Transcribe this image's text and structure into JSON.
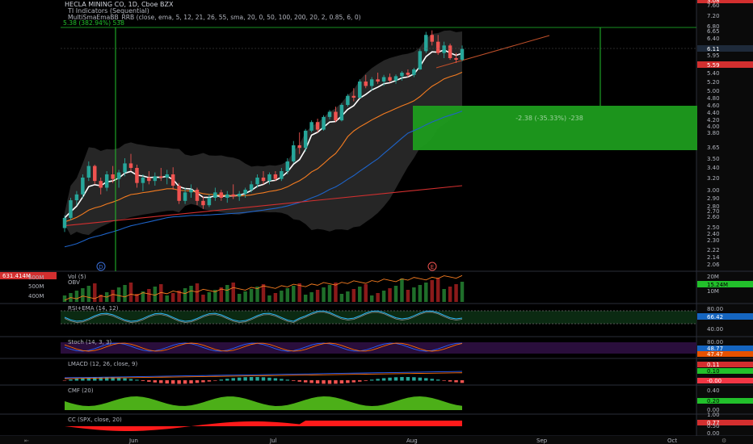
{
  "header": {
    "title": "HECLA MINING CO, 1D, Cboe BZX",
    "indicator1": "TI Indicators (Sequential)",
    "indicator2": "MultiSmaEmaBB_RRB (close, ema, 5, 12, 21, 26, 55, sma, 20, 0, 50, 100, 200, 20, 2, 0.85, 6, 0)",
    "measure_label": "5.38 (382.94%) 538"
  },
  "colors": {
    "up": "#26a69a",
    "down": "#ef5350",
    "ema_fast": "#ffffff",
    "ema_mid": "#f57c20",
    "ema_slow": "#1e63c8",
    "ema_long": "#d32f2f",
    "bb_fill": "#2a2a2a",
    "zone": "#1e9c1e",
    "green": "#22c02b",
    "red": "#f23645"
  },
  "price_axis": {
    "ticks": [
      "7.60",
      "7.20",
      "6.80",
      "6.65",
      "6.40",
      "6.11",
      "5.95",
      "5.59",
      "5.40",
      "5.20",
      "5.00",
      "4.80",
      "4.60",
      "4.40",
      "4.20",
      "4.00",
      "3.80",
      "3.65",
      "3.50",
      "3.40",
      "3.20",
      "3.00",
      "2.90",
      "2.80",
      "2.70",
      "2.60",
      "2.50",
      "2.40",
      "2.30",
      "2.22",
      "2.14",
      "2.06"
    ],
    "badges": [
      {
        "label": "6.11",
        "kind": "dark"
      },
      {
        "label": "5.59",
        "kind": "red"
      },
      {
        "label": "4.23",
        "kind": "blue"
      },
      {
        "label": "3.08",
        "kind": "red"
      }
    ]
  },
  "zone_label": "-2.38 (-35.33%) -238",
  "marker_labels": {
    "left": "D",
    "right": "E"
  },
  "time_axis": {
    "labels": [
      "Jun",
      "Jul",
      "Aug",
      "Sep",
      "Oct"
    ]
  },
  "panes": {
    "vol": {
      "title": "Vol (5)",
      "sub": "OBV",
      "left_labels": [
        "631.414M",
        "600M",
        "500M",
        "400M"
      ],
      "right_labels": [
        "20M",
        "15.24M",
        "10M"
      ]
    },
    "rsi": {
      "title": "RSI+EMA (14, 12)",
      "right_labels": [
        "80.00",
        "66.42",
        "40.00"
      ]
    },
    "stoch": {
      "title": "Stoch (14, 3, 3)",
      "right_labels": [
        "80.00",
        "48.77",
        "47.47"
      ]
    },
    "lmacd": {
      "title": "LMACD (12, 26, close, 9)",
      "right_labels": [
        "0.11",
        "0.10",
        "-0.00"
      ]
    },
    "cmf": {
      "title": "CMF (20)",
      "right_labels": [
        "0.40",
        "0.20",
        "0.00"
      ]
    },
    "cc": {
      "title": "CC (SPX, close, 20)",
      "right_labels": [
        "1.00",
        "0.77",
        "0.50",
        "0.00"
      ]
    }
  },
  "chart_data": {
    "type": "candlestick",
    "title": "HECLA MINING CO, 1D, Cboe BZX",
    "series": [
      {
        "name": "price",
        "values": [
          {
            "o": 2.45,
            "h": 2.62,
            "l": 2.4,
            "c": 2.58
          },
          {
            "o": 2.58,
            "h": 2.9,
            "l": 2.55,
            "c": 2.86
          },
          {
            "o": 2.86,
            "h": 3.0,
            "l": 2.78,
            "c": 2.95
          },
          {
            "o": 2.95,
            "h": 3.25,
            "l": 2.9,
            "c": 3.2
          },
          {
            "o": 3.2,
            "h": 3.45,
            "l": 3.15,
            "c": 3.38
          },
          {
            "o": 3.38,
            "h": 3.4,
            "l": 3.1,
            "c": 3.15
          },
          {
            "o": 3.15,
            "h": 3.2,
            "l": 2.95,
            "c": 3.05
          },
          {
            "o": 3.05,
            "h": 3.3,
            "l": 3.0,
            "c": 3.25
          },
          {
            "o": 3.25,
            "h": 3.38,
            "l": 3.12,
            "c": 3.18
          },
          {
            "o": 3.18,
            "h": 3.32,
            "l": 3.05,
            "c": 3.28
          },
          {
            "o": 3.28,
            "h": 3.5,
            "l": 3.22,
            "c": 3.42
          },
          {
            "o": 3.42,
            "h": 3.55,
            "l": 3.3,
            "c": 3.35
          },
          {
            "o": 3.35,
            "h": 3.4,
            "l": 3.05,
            "c": 3.12
          },
          {
            "o": 3.12,
            "h": 3.25,
            "l": 3.0,
            "c": 3.2
          },
          {
            "o": 3.2,
            "h": 3.3,
            "l": 3.1,
            "c": 3.15
          },
          {
            "o": 3.15,
            "h": 3.28,
            "l": 3.08,
            "c": 3.22
          },
          {
            "o": 3.22,
            "h": 3.35,
            "l": 3.15,
            "c": 3.2
          },
          {
            "o": 3.2,
            "h": 3.32,
            "l": 3.1,
            "c": 3.25
          },
          {
            "o": 3.25,
            "h": 3.36,
            "l": 3.02,
            "c": 3.08
          },
          {
            "o": 3.08,
            "h": 3.12,
            "l": 2.8,
            "c": 2.85
          },
          {
            "o": 2.85,
            "h": 3.05,
            "l": 2.8,
            "c": 2.98
          },
          {
            "o": 2.98,
            "h": 3.1,
            "l": 2.9,
            "c": 3.02
          },
          {
            "o": 3.02,
            "h": 3.05,
            "l": 2.78,
            "c": 2.85
          },
          {
            "o": 2.85,
            "h": 2.92,
            "l": 2.72,
            "c": 2.78
          },
          {
            "o": 2.78,
            "h": 2.95,
            "l": 2.75,
            "c": 2.9
          },
          {
            "o": 2.9,
            "h": 3.05,
            "l": 2.85,
            "c": 2.98
          },
          {
            "o": 2.98,
            "h": 3.02,
            "l": 2.85,
            "c": 2.9
          },
          {
            "o": 2.9,
            "h": 3.0,
            "l": 2.82,
            "c": 2.95
          },
          {
            "o": 2.95,
            "h": 3.1,
            "l": 2.88,
            "c": 2.92
          },
          {
            "o": 2.92,
            "h": 3.0,
            "l": 2.85,
            "c": 2.96
          },
          {
            "o": 2.96,
            "h": 3.05,
            "l": 2.9,
            "c": 3.02
          },
          {
            "o": 3.02,
            "h": 3.15,
            "l": 2.98,
            "c": 3.1
          },
          {
            "o": 3.1,
            "h": 3.25,
            "l": 3.05,
            "c": 3.2
          },
          {
            "o": 3.2,
            "h": 3.3,
            "l": 3.1,
            "c": 3.15
          },
          {
            "o": 3.15,
            "h": 3.28,
            "l": 3.1,
            "c": 3.25
          },
          {
            "o": 3.25,
            "h": 3.3,
            "l": 3.15,
            "c": 3.18
          },
          {
            "o": 3.18,
            "h": 3.35,
            "l": 3.15,
            "c": 3.3
          },
          {
            "o": 3.3,
            "h": 3.5,
            "l": 3.25,
            "c": 3.45
          },
          {
            "o": 3.45,
            "h": 3.7,
            "l": 3.42,
            "c": 3.65
          },
          {
            "o": 3.65,
            "h": 3.8,
            "l": 3.55,
            "c": 3.62
          },
          {
            "o": 3.62,
            "h": 3.9,
            "l": 3.58,
            "c": 3.85
          },
          {
            "o": 3.85,
            "h": 4.15,
            "l": 3.8,
            "c": 4.1
          },
          {
            "o": 4.1,
            "h": 4.2,
            "l": 3.8,
            "c": 3.88
          },
          {
            "o": 3.88,
            "h": 4.3,
            "l": 3.85,
            "c": 4.25
          },
          {
            "o": 4.25,
            "h": 4.45,
            "l": 4.18,
            "c": 4.4
          },
          {
            "o": 4.4,
            "h": 4.55,
            "l": 4.1,
            "c": 4.15
          },
          {
            "o": 4.15,
            "h": 4.65,
            "l": 4.12,
            "c": 4.6
          },
          {
            "o": 4.6,
            "h": 4.9,
            "l": 4.55,
            "c": 4.85
          },
          {
            "o": 4.85,
            "h": 5.05,
            "l": 4.7,
            "c": 4.8
          },
          {
            "o": 4.8,
            "h": 5.25,
            "l": 4.78,
            "c": 5.2
          },
          {
            "o": 5.2,
            "h": 5.35,
            "l": 5.05,
            "c": 5.1
          },
          {
            "o": 5.1,
            "h": 5.3,
            "l": 5.0,
            "c": 5.25
          },
          {
            "o": 5.25,
            "h": 5.4,
            "l": 5.15,
            "c": 5.2
          },
          {
            "o": 5.2,
            "h": 5.35,
            "l": 5.1,
            "c": 5.3
          },
          {
            "o": 5.3,
            "h": 5.38,
            "l": 5.18,
            "c": 5.22
          },
          {
            "o": 5.22,
            "h": 5.36,
            "l": 5.15,
            "c": 5.32
          },
          {
            "o": 5.32,
            "h": 5.45,
            "l": 5.22,
            "c": 5.4
          },
          {
            "o": 5.4,
            "h": 5.5,
            "l": 5.3,
            "c": 5.35
          },
          {
            "o": 5.35,
            "h": 5.55,
            "l": 5.3,
            "c": 5.5
          },
          {
            "o": 5.5,
            "h": 6.1,
            "l": 5.48,
            "c": 6.05
          },
          {
            "o": 6.05,
            "h": 6.6,
            "l": 6.0,
            "c": 6.5
          },
          {
            "o": 6.5,
            "h": 6.65,
            "l": 6.2,
            "c": 6.3
          },
          {
            "o": 6.3,
            "h": 6.5,
            "l": 5.95,
            "c": 6.0
          },
          {
            "o": 6.0,
            "h": 6.3,
            "l": 5.85,
            "c": 6.2
          },
          {
            "o": 6.2,
            "h": 6.25,
            "l": 5.8,
            "c": 5.85
          },
          {
            "o": 5.85,
            "h": 6.0,
            "l": 5.7,
            "c": 5.8
          },
          {
            "o": 5.8,
            "h": 6.2,
            "l": 5.75,
            "c": 6.11
          }
        ]
      }
    ]
  }
}
